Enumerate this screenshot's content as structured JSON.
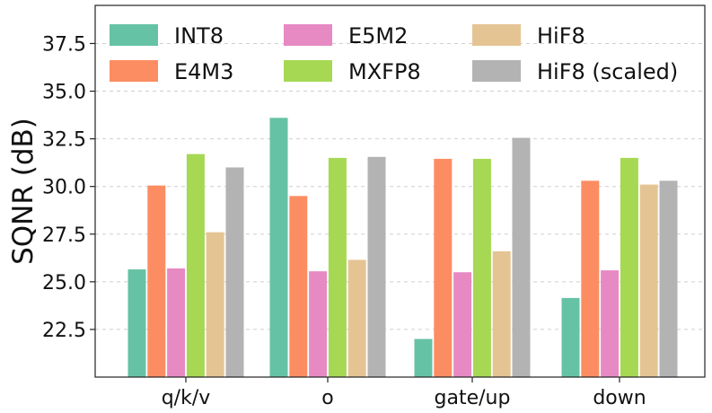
{
  "chart_data": {
    "type": "bar",
    "title": "",
    "xlabel": "",
    "ylabel": "SQNR (dB)",
    "categories": [
      "q/k/v",
      "o",
      "gate/up",
      "down"
    ],
    "ylim": [
      20,
      39.5
    ],
    "y_ticks": [
      22.5,
      25.0,
      27.5,
      30.0,
      32.5,
      35.0,
      37.5
    ],
    "grid": "horizontal dashed",
    "legend": {
      "placement": "top",
      "columns": 3
    },
    "series": [
      {
        "name": "INT8",
        "color": "#66c2a5",
        "values": [
          25.65,
          33.6,
          22.0,
          24.15
        ]
      },
      {
        "name": "E4M3",
        "color": "#fc8d62",
        "values": [
          30.05,
          29.5,
          31.45,
          30.3
        ]
      },
      {
        "name": "E5M2",
        "color": "#e78ac3",
        "values": [
          25.7,
          25.55,
          25.5,
          25.6
        ]
      },
      {
        "name": "MXFP8",
        "color": "#a6d854",
        "values": [
          31.7,
          31.5,
          31.45,
          31.5
        ]
      },
      {
        "name": "HiF8",
        "color": "#e5c494",
        "values": [
          27.6,
          26.15,
          26.6,
          30.1
        ]
      },
      {
        "name": "HiF8 (scaled)",
        "color": "#b3b3b3",
        "values": [
          31.0,
          31.55,
          32.55,
          30.3
        ]
      }
    ]
  }
}
